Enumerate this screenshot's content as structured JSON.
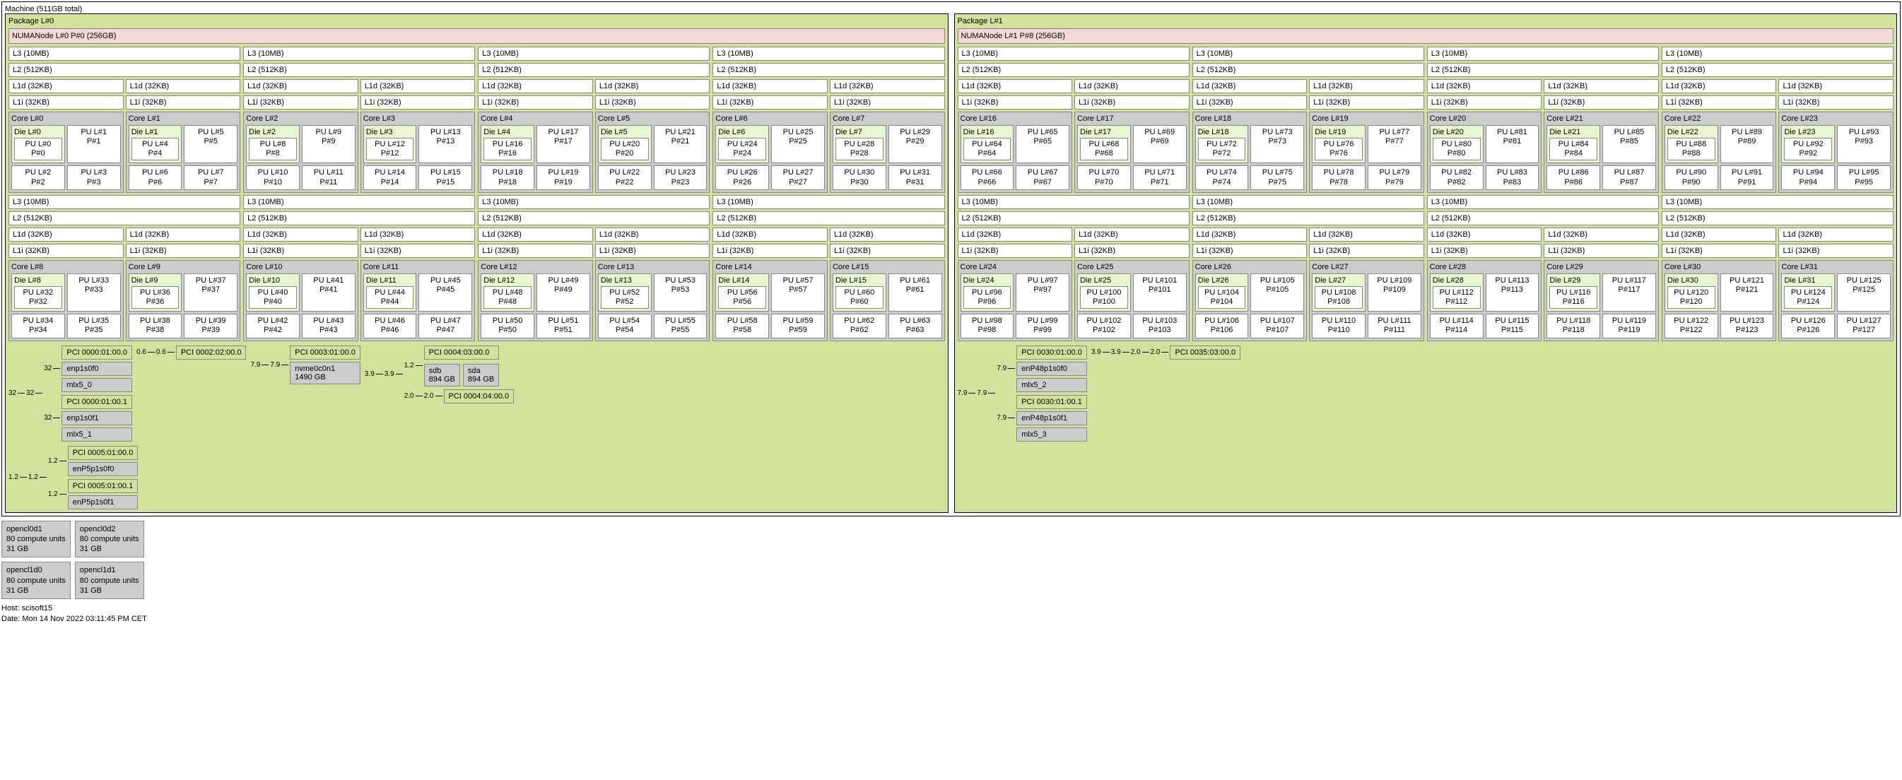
{
  "colors": {
    "package_bg": "#d1e29a",
    "numa_bg": "#f4d9d9",
    "cache_bg": "#ffffff",
    "core_bg": "#cccccc",
    "die_bg": "#e7f6ce",
    "pu_bg": "#ffffff",
    "pci_bg": "#d1e29a",
    "device_bg": "#cccccc",
    "border": "#888888"
  },
  "machine_label": "Machine (511GB total)",
  "packages": [
    {
      "label": "Package L#0",
      "numa": "NUMANode L#0 P#0 (256GB)",
      "core_start": 0,
      "pu_start": 0,
      "pci_groups_top": [
        {
          "link_in": "32",
          "link_out": "32",
          "items": [
            {
              "link_in": "32",
              "pci": "PCI 0000:01:00.0",
              "devs": [
                "enp1s0f0",
                "mlx5_0"
              ]
            },
            {
              "link_in": "32",
              "pci": "PCI 0000:01:00.1",
              "devs": [
                "enp1s0f1",
                "mlx5_1"
              ]
            }
          ]
        },
        {
          "link_in": "0.6",
          "link_out": "0.6",
          "items": [
            {
              "link_in": "",
              "pci": "PCI 0002:02:00.0",
              "devs": []
            }
          ]
        },
        {
          "link_in": "7.9",
          "link_out": "7.9",
          "items": [
            {
              "link_in": "",
              "pci": "PCI 0003:01:00.0",
              "dev_lines": [
                "nvme0c0n1",
                "1490 GB"
              ]
            }
          ]
        },
        {
          "link_in": "3.9",
          "link_out": "3.9",
          "items": [
            {
              "link_in": "1.2",
              "pci": "PCI 0004:03:00.0",
              "dev_pairs": [
                [
                  "sdb",
                  "894 GB"
                ],
                [
                  "sda",
                  "894 GB"
                ]
              ]
            },
            {
              "link_in": "2.0",
              "link_out": "2.0",
              "pci": "PCI 0004:04:00.0",
              "devs": []
            }
          ]
        }
      ],
      "pci_groups_second": [
        {
          "link_in": "1.2",
          "link_out": "1.2",
          "items": [
            {
              "link_in": "1.2",
              "pci": "PCI 0005:01:00.0",
              "devs": [
                "enP5p1s0f0"
              ]
            },
            {
              "link_in": "1.2",
              "pci": "PCI 0005:01:00.1",
              "devs": [
                "enP5p1s0f1"
              ]
            }
          ]
        }
      ]
    },
    {
      "label": "Package L#1",
      "numa": "NUMANode L#1 P#8 (256GB)",
      "core_start": 16,
      "pu_start": 64,
      "pci_groups_top": [
        {
          "link_in": "7.9",
          "link_out": "7.9",
          "items": [
            {
              "link_in": "7.9",
              "pci": "PCI 0030:01:00.0",
              "devs": [
                "enP48p1s0f0",
                "mlx5_2"
              ]
            },
            {
              "link_in": "7.9",
              "pci": "PCI 0030:01:00.1",
              "devs": [
                "enP48p1s0f1",
                "mlx5_3"
              ]
            }
          ]
        },
        {
          "link_in": "3.9",
          "link_out": "3.9",
          "items": [
            {
              "link_in": "2.0",
              "link_out": "2.0",
              "pci": "PCI 0035:03:00.0",
              "devs": []
            }
          ]
        }
      ],
      "pci_groups_second": []
    }
  ],
  "l3_label": "L3 (10MB)",
  "l2_label": "L2 (512KB)",
  "l1d_label": "L1d (32KB)",
  "l1i_label": "L1i (32KB)",
  "l3_per_row": 4,
  "cores_per_l3": 2,
  "pus_per_core": 4,
  "opencl": [
    {
      "name": "opencl0d1",
      "units": "80 compute units",
      "mem": "31 GB"
    },
    {
      "name": "opencl0d2",
      "units": "80 compute units",
      "mem": "31 GB"
    },
    {
      "name": "opencl1d0",
      "units": "80 compute units",
      "mem": "31 GB"
    },
    {
      "name": "opencl1d1",
      "units": "80 compute units",
      "mem": "31 GB"
    }
  ],
  "footer_host": "Host: scisoft15",
  "footer_date": "Date: Mon 14 Nov 2022 03:11:45 PM CET"
}
